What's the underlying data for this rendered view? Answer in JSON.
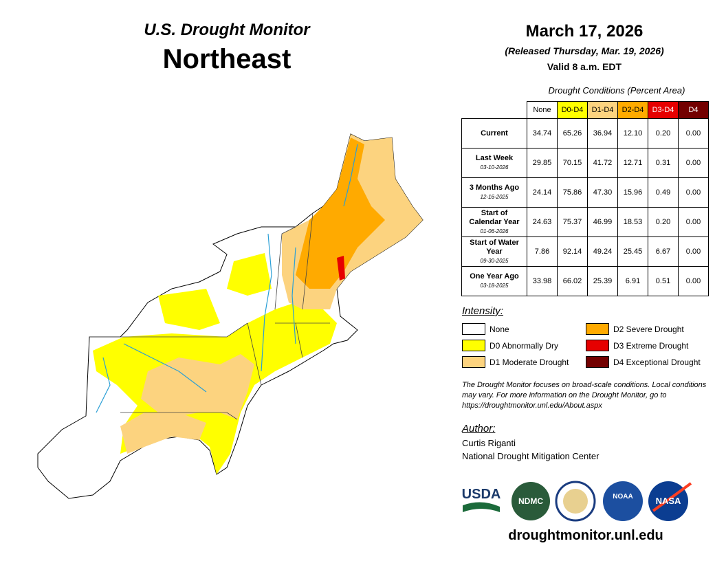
{
  "header": {
    "subtitle": "U.S. Drought Monitor",
    "title": "Northeast"
  },
  "date": {
    "map_date": "March 17, 2026",
    "released": "(Released Thursday, Mar. 19, 2026)",
    "valid": "Valid 8 a.m. EDT"
  },
  "table": {
    "caption": "Drought Conditions (Percent Area)",
    "columns": [
      {
        "label": "None",
        "color": "#ffffff",
        "text_color": "#000000"
      },
      {
        "label": "D0-D4",
        "color": "#ffff00",
        "text_color": "#000000"
      },
      {
        "label": "D1-D4",
        "color": "#fcd37f",
        "text_color": "#000000"
      },
      {
        "label": "D2-D4",
        "color": "#ffaa00",
        "text_color": "#000000"
      },
      {
        "label": "D3-D4",
        "color": "#e60000",
        "text_color": "#ffffff"
      },
      {
        "label": "D4",
        "color": "#730000",
        "text_color": "#ffffff"
      }
    ],
    "rows": [
      {
        "label": "Current",
        "values": [
          "34.74",
          "65.26",
          "36.94",
          "12.10",
          "0.20",
          "0.00"
        ]
      },
      {
        "label": "Last Week",
        "date": "03-10-2026",
        "values": [
          "29.85",
          "70.15",
          "41.72",
          "12.71",
          "0.31",
          "0.00"
        ]
      },
      {
        "label": "3 Months Ago",
        "date": "12-16-2025",
        "values": [
          "24.14",
          "75.86",
          "47.30",
          "15.96",
          "0.49",
          "0.00"
        ]
      },
      {
        "label": "Start of Calendar Year",
        "date": "01-06-2026",
        "values": [
          "24.63",
          "75.37",
          "46.99",
          "18.53",
          "0.20",
          "0.00"
        ]
      },
      {
        "label": "Start of Water Year",
        "date": "09-30-2025",
        "values": [
          "7.86",
          "92.14",
          "49.24",
          "25.45",
          "6.67",
          "0.00"
        ]
      },
      {
        "label": "One Year Ago",
        "date": "03-18-2025",
        "values": [
          "33.98",
          "66.02",
          "25.39",
          "6.91",
          "0.51",
          "0.00"
        ]
      }
    ]
  },
  "legend": {
    "title": "Intensity:",
    "items": [
      {
        "label": "None",
        "color": "#ffffff"
      },
      {
        "label": "D0 Abnormally Dry",
        "color": "#ffff00"
      },
      {
        "label": "D1 Moderate Drought",
        "color": "#fcd37f"
      },
      {
        "label": "D2 Severe Drought",
        "color": "#ffaa00"
      },
      {
        "label": "D3 Extreme Drought",
        "color": "#e60000"
      },
      {
        "label": "D4 Exceptional Drought",
        "color": "#730000"
      }
    ]
  },
  "note": "The Drought Monitor focuses on broad-scale conditions. Local conditions may vary. For more information on the Drought Monitor, go to https://droughtmonitor.unl.edu/About.aspx",
  "author": {
    "title": "Author:",
    "name": "Curtis Riganti",
    "org": "National Drought Mitigation Center"
  },
  "logos": [
    "USDA",
    "NDMC",
    "NOAA",
    "NASA"
  ],
  "footer": {
    "url": "droughtmonitor.unl.edu"
  }
}
